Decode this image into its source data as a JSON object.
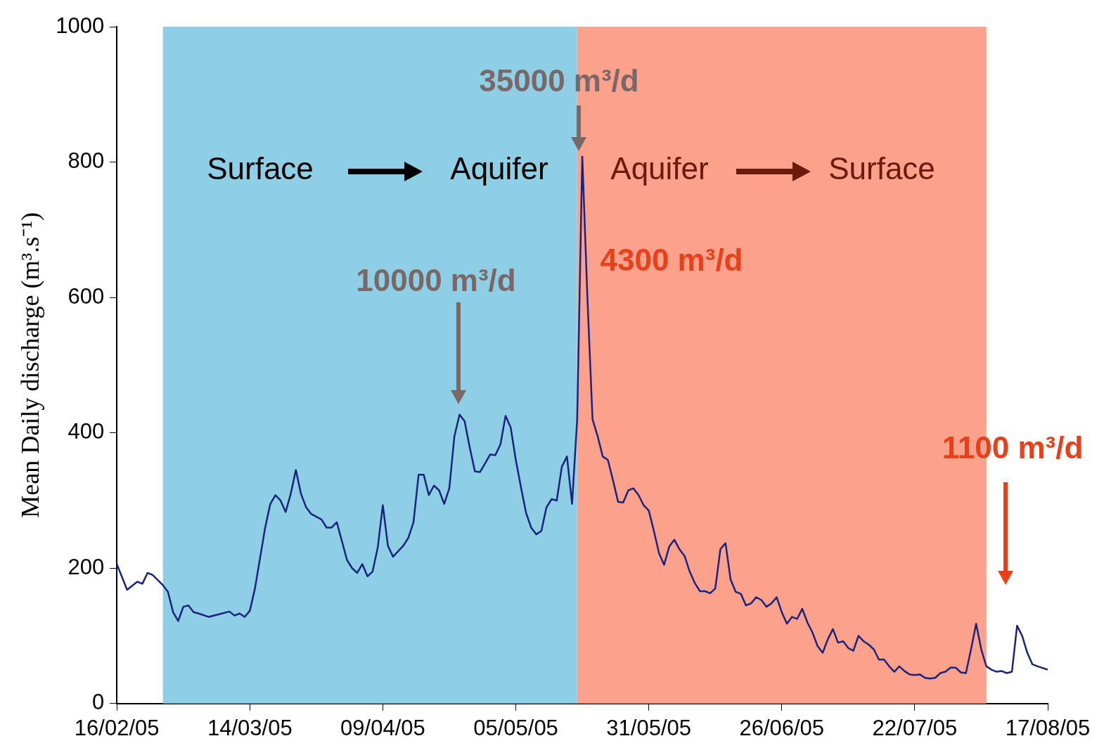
{
  "chart_data": {
    "type": "line",
    "ylabel": "Mean Daily discharge (m³.s⁻¹)",
    "x": [
      "2005-02-16",
      "2005-02-18",
      "2005-02-20",
      "2005-02-21",
      "2005-02-22",
      "2005-02-23",
      "2005-02-25",
      "2005-02-26",
      "2005-02-27",
      "2005-02-28",
      "2005-03-01",
      "2005-03-02",
      "2005-03-03",
      "2005-03-04",
      "2005-03-06",
      "2005-03-08",
      "2005-03-10",
      "2005-03-11",
      "2005-03-12",
      "2005-03-13",
      "2005-03-14",
      "2005-03-15",
      "2005-03-17",
      "2005-03-18",
      "2005-03-19",
      "2005-03-20",
      "2005-03-21",
      "2005-03-22",
      "2005-03-23",
      "2005-03-24",
      "2005-03-25",
      "2005-03-26",
      "2005-03-28",
      "2005-03-29",
      "2005-03-30",
      "2005-03-31",
      "2005-04-01",
      "2005-04-02",
      "2005-04-03",
      "2005-04-04",
      "2005-04-05",
      "2005-04-06",
      "2005-04-07",
      "2005-04-08",
      "2005-04-09",
      "2005-04-10",
      "2005-04-11",
      "2005-04-12",
      "2005-04-13",
      "2005-04-14",
      "2005-04-15",
      "2005-04-16",
      "2005-04-17",
      "2005-04-18",
      "2005-04-19",
      "2005-04-20",
      "2005-04-21",
      "2005-04-22",
      "2005-04-23",
      "2005-04-24",
      "2005-04-25",
      "2005-04-26",
      "2005-04-27",
      "2005-04-28",
      "2005-04-29",
      "2005-04-30",
      "2005-05-01",
      "2005-05-02",
      "2005-05-03",
      "2005-05-04",
      "2005-05-05",
      "2005-05-06",
      "2005-05-07",
      "2005-05-08",
      "2005-05-09",
      "2005-05-10",
      "2005-05-11",
      "2005-05-12",
      "2005-05-13",
      "2005-05-14",
      "2005-05-15",
      "2005-05-16",
      "2005-05-17",
      "2005-05-18",
      "2005-05-19",
      "2005-05-20",
      "2005-05-21",
      "2005-05-22",
      "2005-05-23",
      "2005-05-24",
      "2005-05-25",
      "2005-05-26",
      "2005-05-27",
      "2005-05-28",
      "2005-05-29",
      "2005-05-30",
      "2005-05-31",
      "2005-06-01",
      "2005-06-02",
      "2005-06-03",
      "2005-06-04",
      "2005-06-05",
      "2005-06-06",
      "2005-06-07",
      "2005-06-08",
      "2005-06-09",
      "2005-06-10",
      "2005-06-11",
      "2005-06-12",
      "2005-06-13",
      "2005-06-14",
      "2005-06-15",
      "2005-06-16",
      "2005-06-17",
      "2005-06-18",
      "2005-06-19",
      "2005-06-20",
      "2005-06-21",
      "2005-06-22",
      "2005-06-23",
      "2005-06-24",
      "2005-06-25",
      "2005-06-26",
      "2005-06-27",
      "2005-06-28",
      "2005-06-29",
      "2005-06-30",
      "2005-07-01",
      "2005-07-02",
      "2005-07-03",
      "2005-07-04",
      "2005-07-05",
      "2005-07-06",
      "2005-07-07",
      "2005-07-08",
      "2005-07-09",
      "2005-07-10",
      "2005-07-11",
      "2005-07-12",
      "2005-07-13",
      "2005-07-14",
      "2005-07-15",
      "2005-07-16",
      "2005-07-17",
      "2005-07-18",
      "2005-07-19",
      "2005-07-20",
      "2005-07-21",
      "2005-07-22",
      "2005-07-23",
      "2005-07-24",
      "2005-07-25",
      "2005-07-26",
      "2005-07-27",
      "2005-07-28",
      "2005-07-29",
      "2005-07-30",
      "2005-07-31",
      "2005-08-01",
      "2005-08-02",
      "2005-08-03",
      "2005-08-04",
      "2005-08-05",
      "2005-08-06",
      "2005-08-07",
      "2005-08-08",
      "2005-08-09",
      "2005-08-10",
      "2005-08-11",
      "2005-08-12",
      "2005-08-13",
      "2005-08-14",
      "2005-08-15",
      "2005-08-17"
    ],
    "series": [
      {
        "color": "#1a237e",
        "values": [
          206,
          168,
          180,
          177,
          193,
          190,
          175,
          165,
          135,
          122,
          143,
          145,
          135,
          133,
          128,
          132,
          136,
          130,
          133,
          128,
          137,
          170,
          260,
          295,
          308,
          300,
          283,
          310,
          345,
          310,
          290,
          280,
          272,
          260,
          260,
          268,
          240,
          212,
          200,
          193,
          206,
          188,
          195,
          230,
          293,
          233,
          217,
          225,
          233,
          245,
          268,
          338,
          338,
          308,
          322,
          315,
          295,
          318,
          395,
          427,
          417,
          378,
          343,
          342,
          355,
          368,
          367,
          383,
          425,
          408,
          360,
          320,
          282,
          260,
          250,
          255,
          290,
          302,
          300,
          350,
          365,
          295,
          420,
          808,
          600,
          420,
          395,
          365,
          360,
          330,
          298,
          297,
          315,
          318,
          308,
          293,
          285,
          255,
          222,
          205,
          232,
          242,
          228,
          218,
          195,
          178,
          166,
          166,
          163,
          170,
          228,
          237,
          183,
          165,
          162,
          145,
          148,
          157,
          153,
          143,
          148,
          157,
          135,
          118,
          128,
          125,
          140,
          120,
          105,
          85,
          75,
          95,
          110,
          90,
          92,
          82,
          78,
          100,
          92,
          87,
          80,
          65,
          65,
          55,
          47,
          55,
          48,
          43,
          42,
          43,
          38,
          37,
          38,
          45,
          47,
          53,
          53,
          46,
          45,
          80,
          118,
          80,
          55,
          50,
          47,
          48,
          45,
          47,
          115,
          100,
          75,
          58,
          55,
          50
        ]
      }
    ],
    "xlim": [
      "2005-02-16",
      "2005-08-17"
    ],
    "xticks": [
      {
        "value": "2005-02-16",
        "label": "16/02/05"
      },
      {
        "value": "2005-03-14",
        "label": "14/03/05"
      },
      {
        "value": "2005-04-09",
        "label": "09/04/05"
      },
      {
        "value": "2005-05-05",
        "label": "05/05/05"
      },
      {
        "value": "2005-05-31",
        "label": "31/05/05"
      },
      {
        "value": "2005-06-26",
        "label": "26/06/05"
      },
      {
        "value": "2005-07-22",
        "label": "22/07/05"
      },
      {
        "value": "2005-08-17",
        "label": "17/08/05"
      }
    ],
    "ylim": [
      0,
      1000
    ],
    "yticks": [
      0,
      200,
      400,
      600,
      800,
      1000
    ],
    "grid": false,
    "legend": false,
    "marker": "none",
    "line_style": "solid",
    "bands": [
      {
        "axis": "x",
        "from": "2005-02-25",
        "to": "2005-05-17",
        "color": "#8ecfe6"
      },
      {
        "axis": "x",
        "from": "2005-05-17",
        "to": "2005-08-05",
        "color": "#fca28c"
      }
    ],
    "annotations": [
      "Surface",
      "Aquifer",
      "Aquifer",
      "Surface",
      "35000 m³/d",
      "4300 m³/d",
      "10000 m³/d",
      "1100 m³/d"
    ]
  }
}
